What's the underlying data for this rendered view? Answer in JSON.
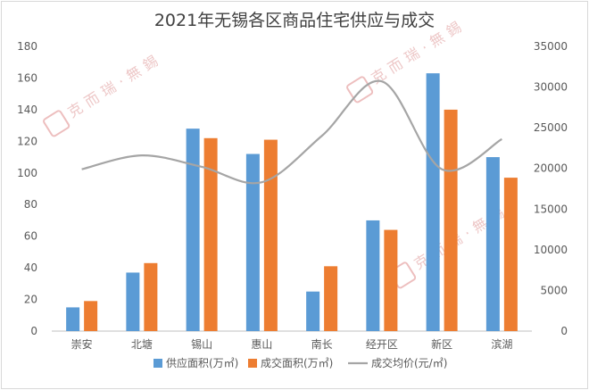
{
  "chart_data": {
    "type": "bar",
    "title": "2021年无锡各区商品住宅供应与成交",
    "categories": [
      "崇安",
      "北塘",
      "锡山",
      "惠山",
      "南长",
      "经开区",
      "新区",
      "滨湖"
    ],
    "series": [
      {
        "name": "供应面积(万㎡)",
        "type": "bar",
        "axis": "left",
        "color": "#5b9bd5",
        "values": [
          15,
          37,
          128,
          112,
          25,
          70,
          163,
          110
        ]
      },
      {
        "name": "成交面积(万㎡)",
        "type": "bar",
        "axis": "left",
        "color": "#ed7d31",
        "values": [
          19,
          43,
          122,
          121,
          41,
          64,
          140,
          97
        ]
      },
      {
        "name": "成交均价(元/㎡)",
        "type": "line",
        "axis": "right",
        "color": "#a5a5a5",
        "values": [
          19900,
          21600,
          20200,
          18300,
          24000,
          30700,
          19900,
          23600
        ]
      }
    ],
    "y_left": {
      "min": 0,
      "max": 180,
      "step": 20,
      "ticks": [
        "0",
        "20",
        "40",
        "60",
        "80",
        "100",
        "120",
        "140",
        "160",
        "180"
      ]
    },
    "y_right": {
      "min": 0,
      "max": 35000,
      "step": 5000,
      "ticks": [
        "0",
        "5000",
        "10000",
        "15000",
        "20000",
        "25000",
        "30000",
        "35000"
      ]
    },
    "grid": false,
    "legend_position": "bottom",
    "watermark": "克而瑞·無錫"
  }
}
